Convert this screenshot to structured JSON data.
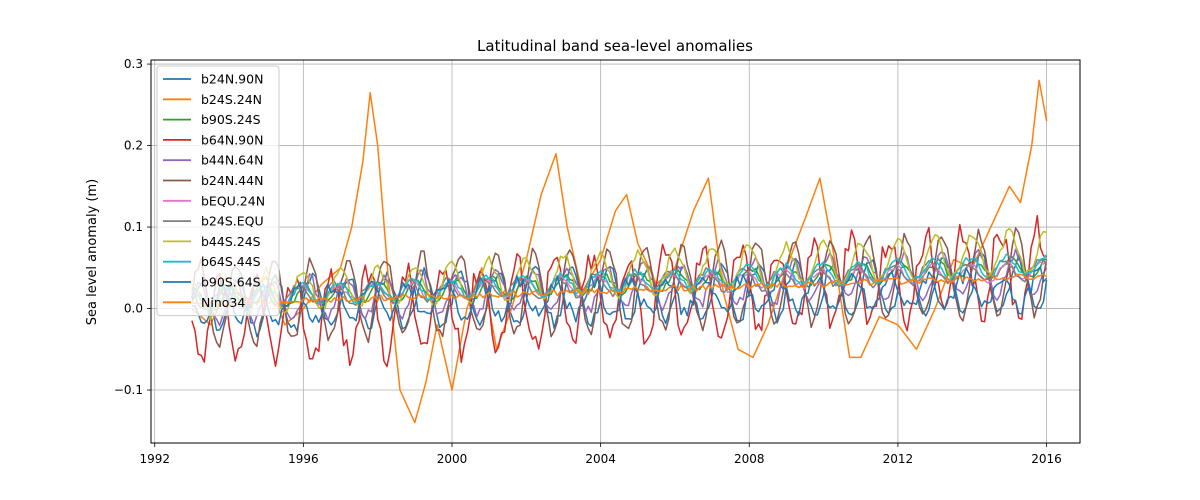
{
  "chart_data": {
    "type": "line",
    "title": "Latitudinal band sea-level anomalies",
    "xlabel": "",
    "ylabel": "Sea level anomaly (m)",
    "xlim": [
      1991.9,
      2016.9
    ],
    "ylim": [
      -0.165,
      0.305
    ],
    "x_ticks": [
      1992,
      1996,
      2000,
      2004,
      2008,
      2012,
      2016
    ],
    "y_ticks": [
      -0.1,
      0.0,
      0.1,
      0.2,
      0.3
    ],
    "y_tick_labels": [
      "−0.1",
      "0.0",
      "0.1",
      "0.2",
      "0.3"
    ],
    "grid": true,
    "legend_position": "top-left",
    "series": [
      {
        "name": "b24N.90N",
        "color": "#1f77b4",
        "mode": "seasonal",
        "base": 0.003,
        "trend": 0.0012,
        "amp": 0.032,
        "phase": 0.0,
        "noise": 0.008,
        "seed": 11
      },
      {
        "name": "b24S.24N",
        "color": "#ff7f0e",
        "mode": "points",
        "x": [
          1993.0,
          1993.5,
          1994.0,
          1994.5,
          1995.0,
          1995.5,
          1996.0,
          1996.5,
          1997.0,
          1997.3,
          1997.6,
          1997.8,
          1998.0,
          1998.3,
          1998.6,
          1999.0,
          1999.3,
          1999.6,
          2000.0,
          2000.4,
          2000.8,
          2001.2,
          2001.6,
          2002.0,
          2002.4,
          2002.8,
          2003.1,
          2003.5,
          2004.0,
          2004.4,
          2004.7,
          2005.0,
          2005.5,
          2006.0,
          2006.5,
          2006.9,
          2007.3,
          2007.7,
          2008.1,
          2008.5,
          2009.0,
          2009.5,
          2009.9,
          2010.3,
          2010.7,
          2011.0,
          2011.5,
          2012.0,
          2012.5,
          2013.0,
          2013.5,
          2014.0,
          2014.5,
          2015.0,
          2015.3,
          2015.6,
          2015.8,
          2016.0
        ],
        "y": [
          0.0,
          -0.02,
          0.03,
          0.01,
          0.04,
          -0.02,
          0.0,
          0.03,
          0.05,
          0.1,
          0.18,
          0.265,
          0.2,
          0.03,
          -0.1,
          -0.14,
          -0.09,
          -0.02,
          -0.1,
          0.0,
          0.05,
          -0.05,
          0.0,
          0.06,
          0.14,
          0.19,
          0.1,
          0.02,
          0.06,
          0.12,
          0.14,
          0.08,
          0.03,
          0.05,
          0.12,
          0.16,
          0.02,
          -0.05,
          -0.06,
          -0.02,
          0.05,
          0.11,
          0.16,
          0.06,
          -0.06,
          -0.06,
          -0.01,
          -0.02,
          -0.05,
          0.0,
          0.06,
          0.05,
          0.1,
          0.15,
          0.13,
          0.2,
          0.28,
          0.23
        ]
      },
      {
        "name": "b90S.24S",
        "color": "#2ca02c",
        "mode": "seasonal",
        "base": 0.01,
        "trend": 0.0018,
        "amp": 0.012,
        "phase": 1.2,
        "noise": 0.004,
        "seed": 23
      },
      {
        "name": "b64N.90N",
        "color": "#d62728",
        "mode": "seasonal",
        "base": -0.02,
        "trend": 0.003,
        "amp": 0.05,
        "phase": 3.14,
        "noise": 0.018,
        "seed": 37
      },
      {
        "name": "b44N.64N",
        "color": "#9467bd",
        "mode": "seasonal",
        "base": 0.006,
        "trend": 0.0017,
        "amp": 0.025,
        "phase": 0.5,
        "noise": 0.008,
        "seed": 41
      },
      {
        "name": "b24N.44N",
        "color": "#8c564b",
        "mode": "seasonal",
        "base": 0.005,
        "trend": 0.0017,
        "amp": 0.05,
        "phase": 0.3,
        "noise": 0.008,
        "seed": 53
      },
      {
        "name": "bEQU.24N",
        "color": "#e377c2",
        "mode": "seasonal",
        "base": 0.012,
        "trend": 0.0015,
        "amp": 0.01,
        "phase": 2.0,
        "noise": 0.004,
        "seed": 61
      },
      {
        "name": "b24S.EQU",
        "color": "#7f7f7f",
        "mode": "seasonal",
        "base": 0.012,
        "trend": 0.0016,
        "amp": 0.012,
        "phase": 2.5,
        "noise": 0.004,
        "seed": 67
      },
      {
        "name": "b44S.24S",
        "color": "#bcbd22",
        "mode": "seasonal",
        "base": 0.015,
        "trend": 0.0024,
        "amp": 0.025,
        "phase": 1.6,
        "noise": 0.006,
        "seed": 71
      },
      {
        "name": "b64S.44S",
        "color": "#17becf",
        "mode": "seasonal",
        "base": 0.012,
        "trend": 0.0018,
        "amp": 0.012,
        "phase": 1.9,
        "noise": 0.004,
        "seed": 79
      },
      {
        "name": "b90S.64S",
        "color": "#1f77b4",
        "mode": "seasonal",
        "base": 0.005,
        "trend": 0.0008,
        "amp": 0.02,
        "phase": 2.8,
        "noise": 0.01,
        "seed": 83
      },
      {
        "name": "Nino34",
        "color": "#ff7f0e",
        "mode": "seasonal",
        "base": 0.005,
        "trend": 0.0015,
        "amp": 0.0,
        "phase": 0.0,
        "noise": 0.004,
        "seed": 97
      }
    ]
  }
}
